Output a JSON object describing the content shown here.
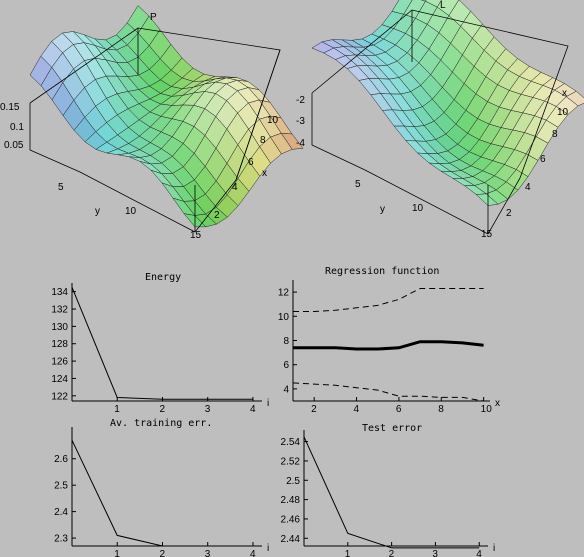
{
  "surfaces": [
    {
      "title": "P",
      "zticks": [
        "0.15",
        "0.1",
        "0.05"
      ],
      "xticks": [
        "2",
        "4",
        "6",
        "8",
        "10"
      ],
      "yticks": [
        "5",
        "10",
        "15"
      ],
      "xlabel": "x",
      "ylabel": "y"
    },
    {
      "title": "L",
      "zticks": [
        "-2",
        "-3",
        "-4"
      ],
      "xticks": [
        "2",
        "4",
        "6",
        "8",
        "10"
      ],
      "yticks": [
        "5",
        "10",
        "15"
      ],
      "xlabel": "x",
      "ylabel": "y"
    }
  ],
  "chart_data": [
    {
      "type": "line",
      "title": "Energy",
      "xlabel": "i",
      "ylabel": "",
      "x": [
        0,
        1,
        2,
        3,
        4
      ],
      "series": [
        {
          "values": [
            134.5,
            121.8,
            121.6,
            121.6,
            121.6
          ]
        }
      ],
      "xlim": [
        0,
        4.2
      ],
      "ylim": [
        121.4,
        135
      ],
      "xticks": [
        1,
        2,
        3,
        4
      ],
      "yticks": [
        122,
        124,
        126,
        128,
        130,
        132,
        134
      ]
    },
    {
      "type": "line",
      "title": "Regression function",
      "xlabel": "x",
      "ylabel": "",
      "x": [
        1,
        2,
        3,
        4,
        5,
        6,
        7,
        8,
        9,
        10
      ],
      "series": [
        {
          "values": [
            7.4,
            7.4,
            7.4,
            7.3,
            7.3,
            7.4,
            7.9,
            7.9,
            7.8,
            7.6
          ]
        },
        {
          "values": [
            10.4,
            10.4,
            10.5,
            10.7,
            10.9,
            11.4,
            12.3,
            12.3,
            12.3,
            12.3
          ]
        },
        {
          "values": [
            4.5,
            4.4,
            4.3,
            4.1,
            3.9,
            3.4,
            3.4,
            3.3,
            3.3,
            3.0
          ]
        }
      ],
      "xlim": [
        1,
        10.3
      ],
      "ylim": [
        3,
        13
      ],
      "xticks": [
        2,
        4,
        6,
        8,
        10
      ],
      "yticks": [
        4,
        6,
        8,
        10,
        12
      ]
    },
    {
      "type": "line",
      "title": "Av. training err.",
      "xlabel": "i",
      "ylabel": "",
      "x": [
        0,
        1,
        2,
        3,
        4
      ],
      "series": [
        {
          "values": [
            2.67,
            2.31,
            2.27,
            2.27,
            2.27
          ]
        }
      ],
      "xlim": [
        0,
        4.2
      ],
      "ylim": [
        2.27,
        2.72
      ],
      "xticks": [
        1,
        2,
        3,
        4
      ],
      "yticks": [
        2.3,
        2.4,
        2.5,
        2.6
      ]
    },
    {
      "type": "line",
      "title": "Test error",
      "xlabel": "i",
      "ylabel": "",
      "x": [
        0,
        1,
        2,
        3,
        4
      ],
      "series": [
        {
          "values": [
            2.545,
            2.445,
            2.43,
            2.43,
            2.43
          ]
        }
      ],
      "xlim": [
        0,
        4.2
      ],
      "ylim": [
        2.432,
        2.552
      ],
      "xticks": [
        1,
        2,
        3,
        4
      ],
      "yticks": [
        2.44,
        2.46,
        2.48,
        2.5,
        2.52,
        2.54
      ]
    }
  ]
}
